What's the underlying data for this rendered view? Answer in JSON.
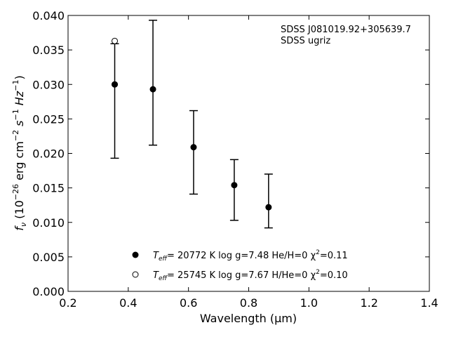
{
  "chart_data": {
    "type": "scatter",
    "xlabel": "Wavelength (μm)",
    "ylabel_prefix": "f",
    "ylabel_sub": "ν",
    "ylabel_rest": " (10",
    "ylabel_sup1": "−26",
    "ylabel_unit": " erg cm",
    "ylabel_sup2": "−2",
    "ylabel_unit2": " s",
    "ylabel_sup3": "−1",
    "ylabel_unit3": " Hz",
    "ylabel_sup4": "−1",
    "ylabel_close": ")",
    "xlim": [
      0.2,
      1.4
    ],
    "ylim": [
      0.0,
      0.04
    ],
    "xticks": [
      "0.2",
      "0.4",
      "0.6",
      "0.8",
      "1.0",
      "1.2",
      "1.4"
    ],
    "yticks": [
      "0.000",
      "0.005",
      "0.010",
      "0.015",
      "0.020",
      "0.025",
      "0.030",
      "0.035",
      "0.040"
    ],
    "grid": false,
    "annotations": [
      "SDSS J081019.92+305639.7",
      "SDSS ugriz"
    ],
    "observed": {
      "x": [
        0.355,
        0.482,
        0.617,
        0.752,
        0.866
      ],
      "y": [
        0.03,
        0.0293,
        0.0209,
        0.0154,
        0.0122
      ],
      "err_low": [
        0.0193,
        0.0212,
        0.0141,
        0.0103,
        0.0092
      ],
      "err_high": [
        0.0359,
        0.0393,
        0.0262,
        0.0191,
        0.017
      ]
    },
    "series": [
      {
        "marker": "filled",
        "label": {
          "T": "T",
          "eff": "eff",
          "a": "= 20772 K  log g=7.48  He/H=0  χ",
          "sq": "2",
          "b": "=0.11"
        },
        "x": [
          0.355
        ],
        "y": [
          0.03
        ]
      },
      {
        "marker": "open",
        "label": {
          "T": "T",
          "eff": "eff",
          "a": "= 25745 K  log g=7.67  H/He=0  χ",
          "sq": "2",
          "b": "=0.10"
        },
        "x": [
          0.355
        ],
        "y": [
          0.0363
        ]
      }
    ],
    "legend_position": "lower-center"
  }
}
